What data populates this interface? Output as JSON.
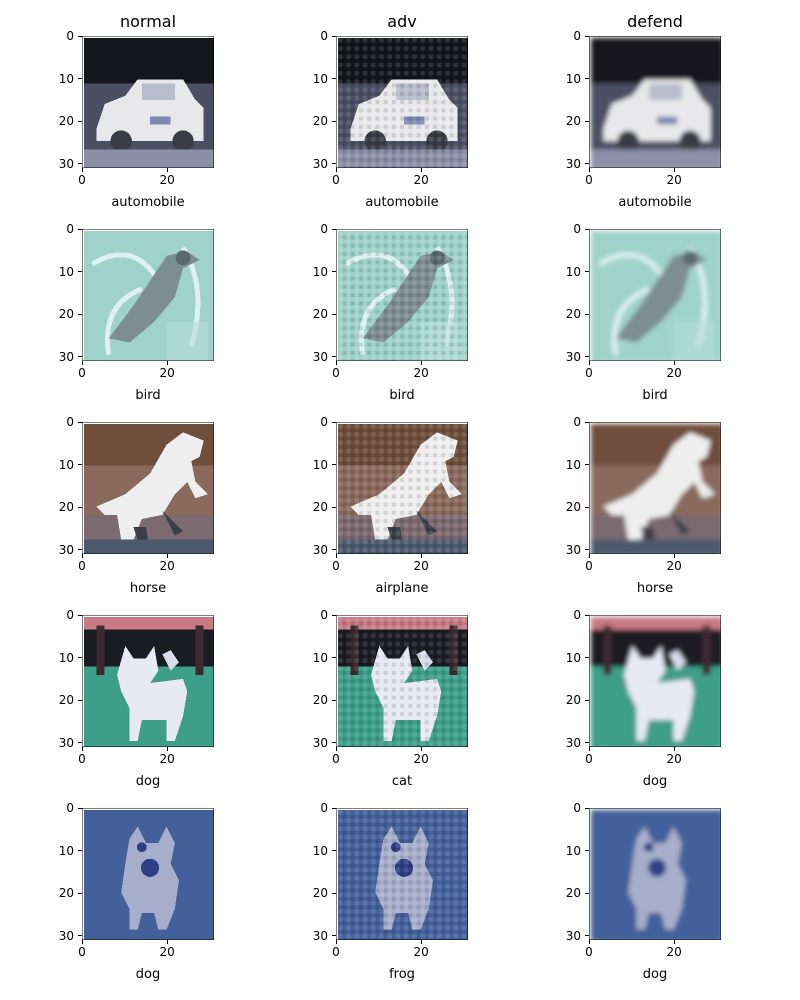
{
  "chart_data": {
    "type": "image-grid",
    "columns": [
      "normal",
      "adv",
      "defend"
    ],
    "axis": {
      "x_ticks": [
        0,
        20
      ],
      "y_ticks": [
        0,
        10,
        20,
        30
      ],
      "range": [
        0,
        31
      ]
    },
    "rows": [
      {
        "scene": "car",
        "labels": [
          "automobile",
          "automobile",
          "automobile"
        ],
        "colors": {
          "bg": "#4c4f63",
          "top": "#15161c",
          "subject": "#e8e8ea",
          "accent": "#7e88b4"
        }
      },
      {
        "scene": "bird",
        "labels": [
          "bird",
          "bird",
          "bird"
        ],
        "colors": {
          "bg": "#9fd3c9",
          "top": "#8ccabd",
          "subject": "#7d8e8e",
          "accent": "#dff1ee"
        }
      },
      {
        "scene": "horse",
        "labels": [
          "horse",
          "airplane",
          "horse"
        ],
        "colors": {
          "bg": "#8a6a5c",
          "top": "#6f4e3c",
          "subject": "#eeeeee",
          "accent": "#3a3f4a"
        }
      },
      {
        "scene": "dog-field",
        "labels": [
          "dog",
          "cat",
          "dog"
        ],
        "colors": {
          "bg": "#3d9e8a",
          "top": "#1b1b22",
          "subject": "#e7e9f4",
          "accent": "#c77a84"
        }
      },
      {
        "scene": "dog-blue",
        "labels": [
          "dog",
          "frog",
          "dog"
        ],
        "colors": {
          "bg": "#4a67a0",
          "top": "#3c5a93",
          "subject": "#a7aecb",
          "accent": "#2f3f86"
        }
      }
    ]
  }
}
